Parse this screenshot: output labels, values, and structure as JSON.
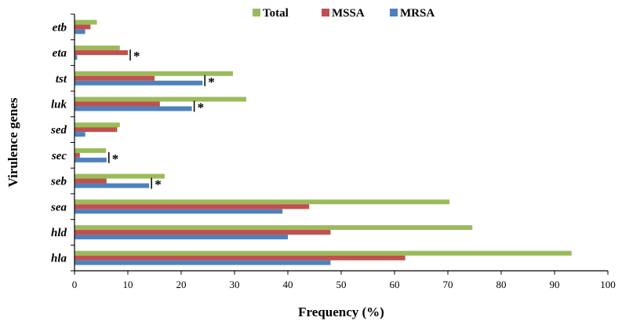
{
  "chart_data": {
    "type": "bar",
    "orientation": "horizontal",
    "title": "",
    "xlabel": "Frequency (%)",
    "ylabel": "Virulence genes",
    "xlim": [
      0,
      100
    ],
    "xticks": [
      0,
      10,
      20,
      30,
      40,
      50,
      60,
      70,
      80,
      90,
      100
    ],
    "categories": [
      "etb",
      "eta",
      "tst",
      "luk",
      "sed",
      "sec",
      "seb",
      "sea",
      "hld",
      "hla"
    ],
    "series": [
      {
        "name": "Total",
        "color": "#9BBB59",
        "values": [
          4.2,
          8.5,
          29.7,
          32.2,
          8.5,
          5.9,
          16.9,
          70.3,
          74.6,
          93.2
        ]
      },
      {
        "name": "MSSA",
        "color": "#C0504D",
        "values": [
          3.0,
          10.0,
          15.0,
          16.0,
          8.0,
          1.0,
          6.0,
          44.0,
          48.0,
          62.0
        ]
      },
      {
        "name": "MRSA",
        "color": "#4F81BD",
        "values": [
          2.0,
          0.5,
          24.0,
          22.0,
          2.0,
          6.0,
          14.0,
          39.0,
          40.0,
          48.0
        ]
      }
    ],
    "significance_marker": "*",
    "significant_categories": [
      "eta",
      "tst",
      "luk",
      "sec",
      "seb"
    ],
    "legend": {
      "position": "top",
      "entries": [
        "Total",
        "MSSA",
        "MRSA"
      ]
    },
    "grid": false
  }
}
